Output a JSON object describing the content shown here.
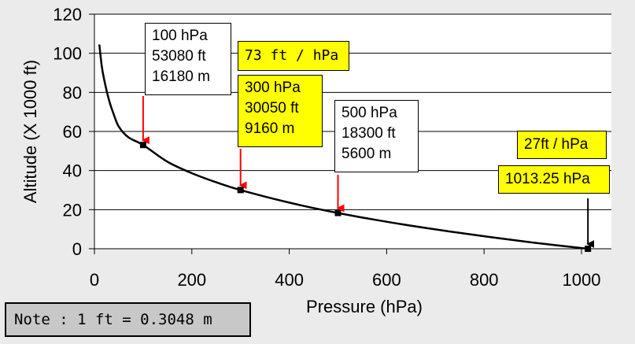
{
  "chart_data": {
    "type": "line",
    "xlabel": "Pressure (hPa)",
    "ylabel": "Altitude (X 1000 ft)",
    "xlim": [
      0,
      1000
    ],
    "ylim": [
      0,
      120
    ],
    "xticks": [
      0,
      200,
      400,
      600,
      800,
      1000
    ],
    "yticks": [
      0,
      20,
      40,
      60,
      80,
      100,
      120
    ],
    "grid": "horizontal",
    "x": [
      10,
      15,
      20,
      30,
      40,
      50,
      70,
      100,
      150,
      200,
      250,
      300,
      400,
      500,
      600,
      700,
      800,
      900,
      1013.25
    ],
    "y": [
      104.5,
      93.5,
      86.5,
      76.0,
      68.5,
      62.5,
      57.0,
      53.08,
      44.5,
      38.66,
      34.0,
      30.05,
      23.6,
      18.3,
      13.8,
      9.9,
      6.4,
      3.2,
      0
    ],
    "points": [
      {
        "x": 100,
        "y": 53.08,
        "color": "#ff0000"
      },
      {
        "x": 300,
        "y": 30.05,
        "color": "#ff0000"
      },
      {
        "x": 500,
        "y": 18.3,
        "color": "#ff0000"
      },
      {
        "x": 1013.25,
        "y": 0,
        "color": "#000000"
      }
    ],
    "annotations": [
      {
        "lines": [
          "100 hPa",
          "53080 ft",
          "16180 m"
        ],
        "style": "white"
      },
      {
        "lines": [
          "73 ft / hPa"
        ],
        "style": "yellow"
      },
      {
        "lines": [
          "300 hPa",
          "30050 ft",
          "9160 m"
        ],
        "style": "yellow"
      },
      {
        "lines": [
          "500 hPa",
          "18300 ft",
          "5600 m"
        ],
        "style": "white"
      },
      {
        "lines": [
          "27ft / hPa"
        ],
        "style": "yellow"
      },
      {
        "lines": [
          "1013.25 hPa"
        ],
        "style": "yellow"
      }
    ]
  },
  "colors": {
    "background": "#ebebeb",
    "plot_background": "#ffffff",
    "highlight": "#ffff00",
    "arrow_red": "#ff0000",
    "note_background": "#c8c8c8"
  },
  "note": "Note : 1 ft = 0.3048 m"
}
